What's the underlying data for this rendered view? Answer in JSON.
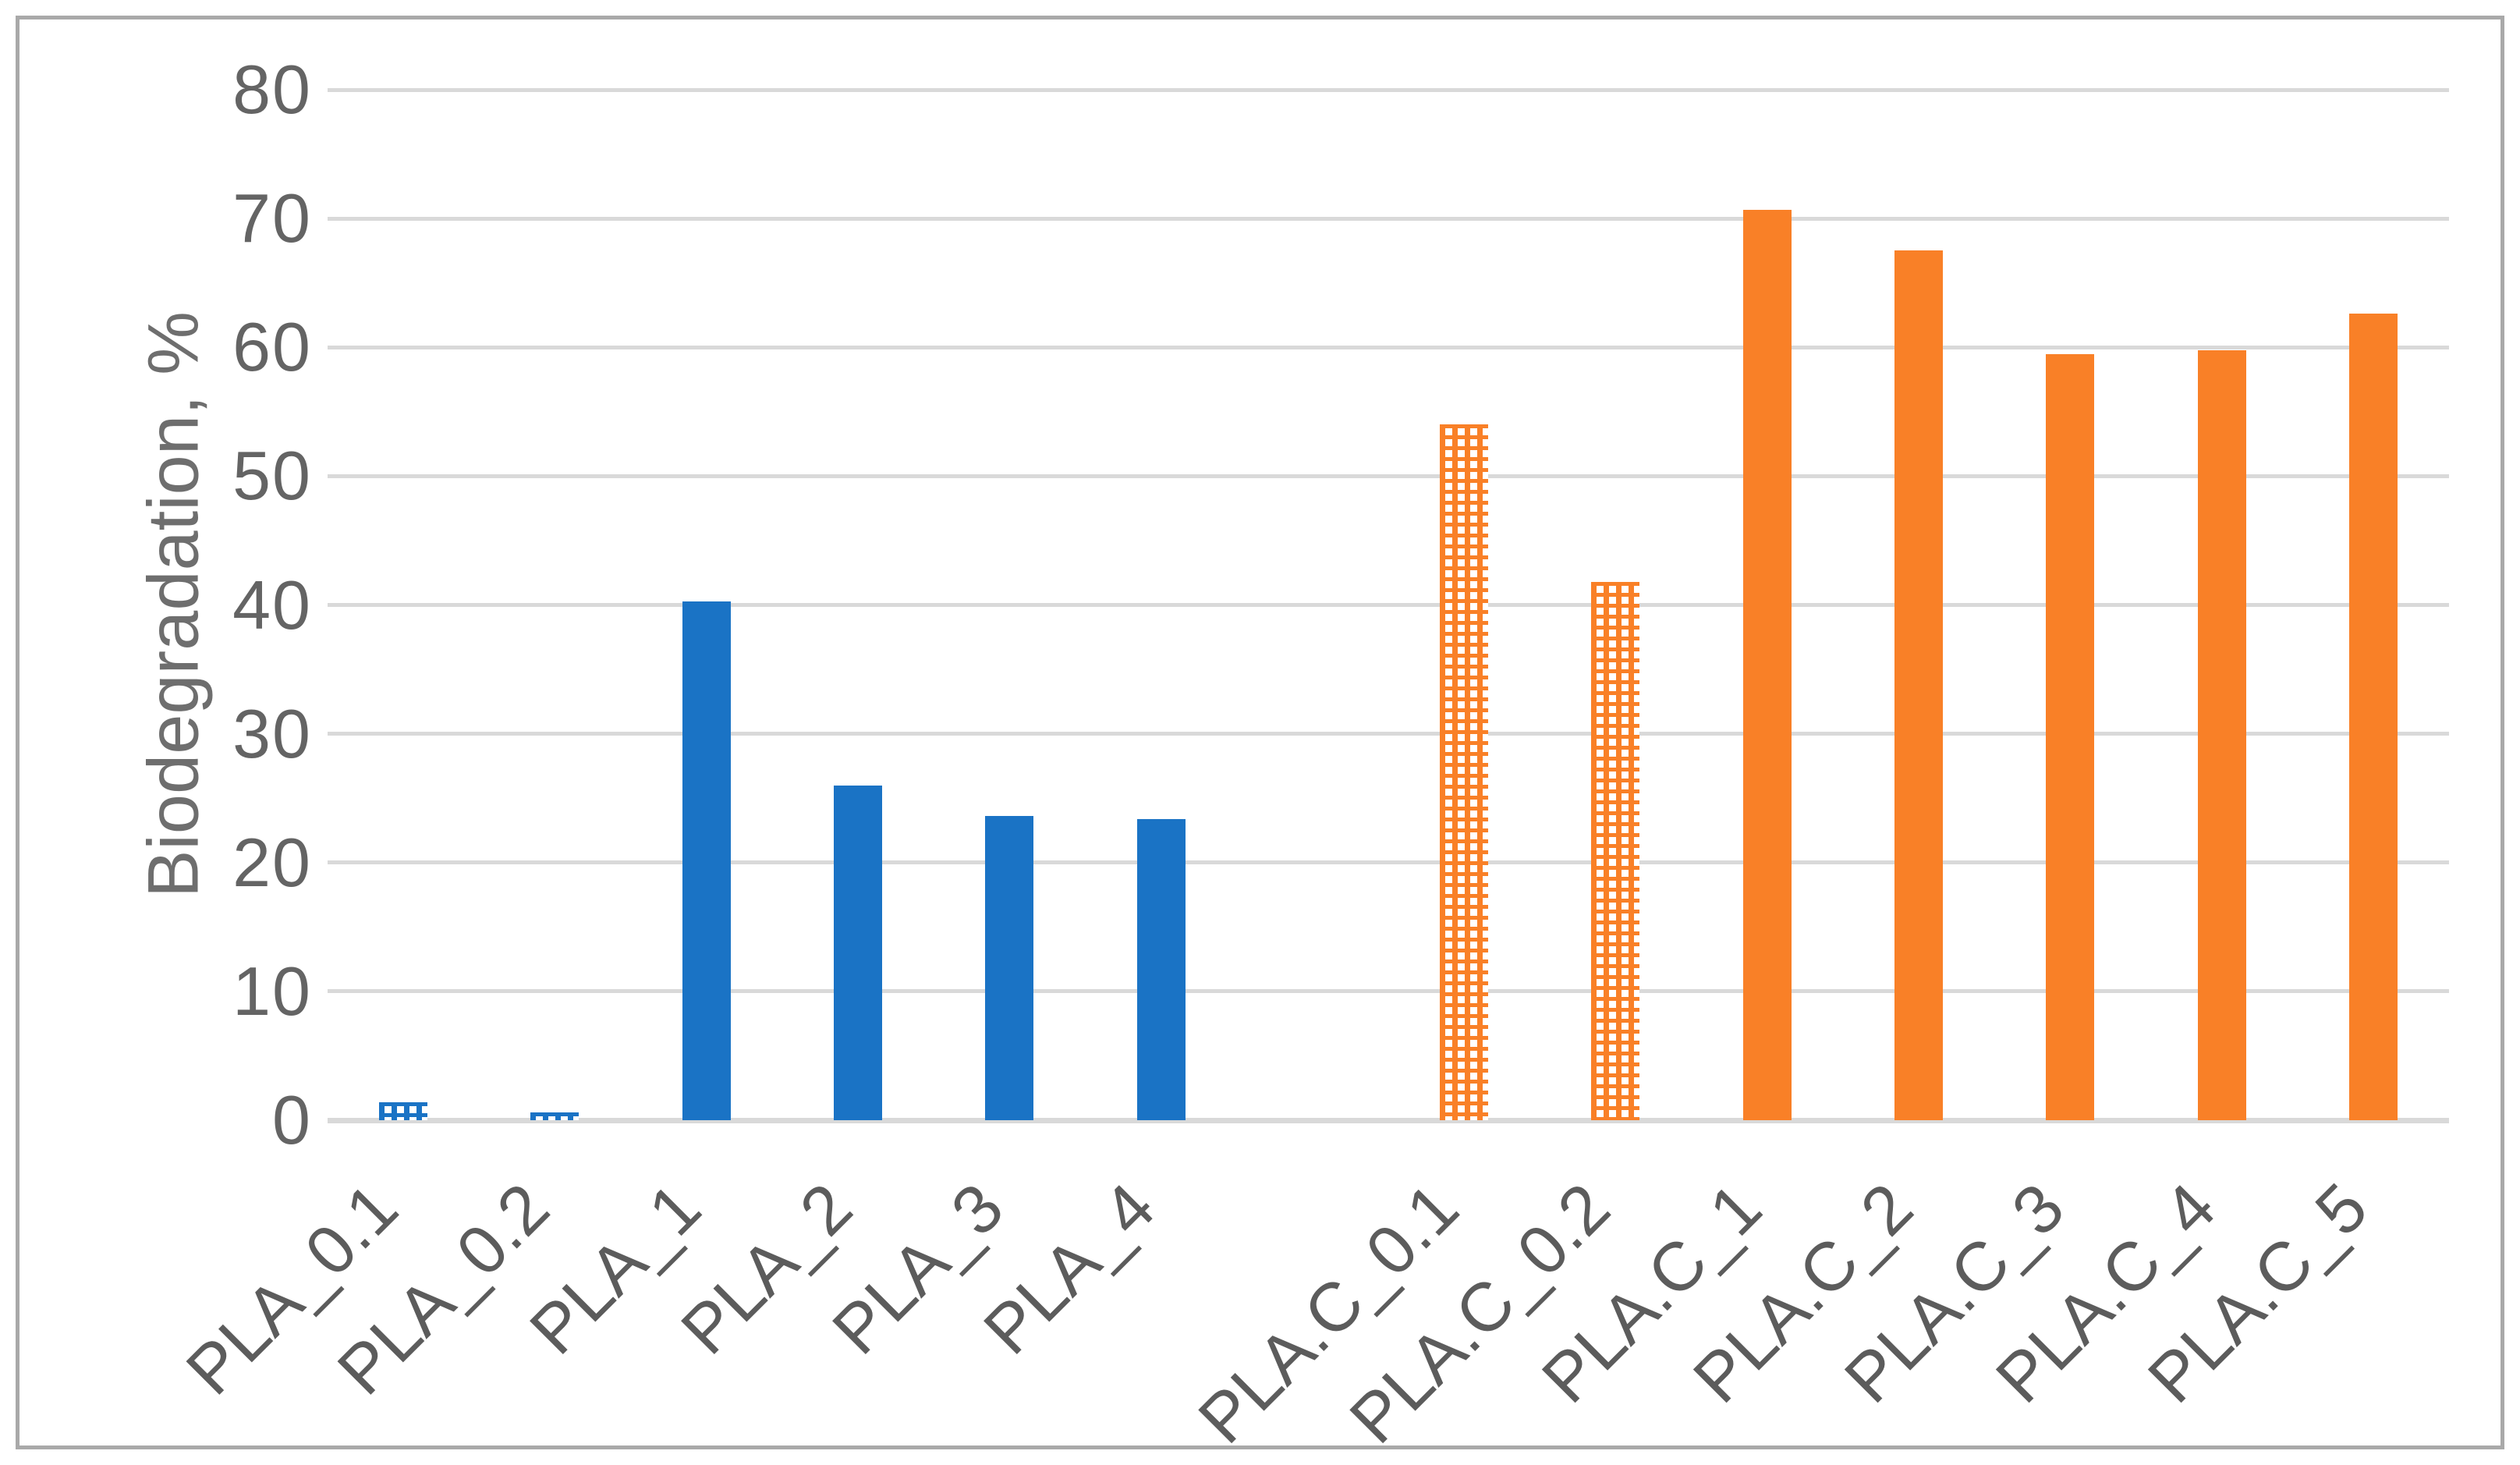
{
  "chart_data": {
    "type": "bar",
    "title": "",
    "xlabel": "",
    "ylabel": "Biodegradation, %",
    "ylim": [
      0,
      80
    ],
    "yticks": [
      0,
      10,
      20,
      30,
      40,
      50,
      60,
      70,
      80
    ],
    "grid": "horizontal-gridlines-on",
    "legend_position": "none",
    "categories": [
      "PLA_0.1",
      "PLA_0.2",
      "PLA_1",
      "PLA_2",
      "PLA_3",
      "PLA_4",
      "PLA.C_0.1",
      "PLA.C_0.2",
      "PLA.C_1",
      "PLA.C_2",
      "PLA.C_3",
      "PLA.C_4",
      "PLA.C_5"
    ],
    "series": [
      {
        "name": "Biodegradation, %",
        "values": [
          1.4,
          0.6,
          40.3,
          26.0,
          23.6,
          23.4,
          54.0,
          41.8,
          70.7,
          67.5,
          59.5,
          59.8,
          62.6
        ]
      }
    ],
    "bars": [
      {
        "label": "PLA_0.1",
        "value": 1.4,
        "color_key": "blue",
        "fill": "dotted"
      },
      {
        "label": "PLA_0.2",
        "value": 0.6,
        "color_key": "blue",
        "fill": "dotted"
      },
      {
        "label": "PLA_1",
        "value": 40.3,
        "color_key": "blue",
        "fill": "solid"
      },
      {
        "label": "PLA_2",
        "value": 26.0,
        "color_key": "blue",
        "fill": "solid"
      },
      {
        "label": "PLA_3",
        "value": 23.6,
        "color_key": "blue",
        "fill": "solid"
      },
      {
        "label": "PLA_4",
        "value": 23.4,
        "color_key": "blue",
        "fill": "solid"
      },
      {
        "label": "PLA.C_0.1",
        "value": 54.0,
        "color_key": "orange",
        "fill": "dotted"
      },
      {
        "label": "PLA.C_0.2",
        "value": 41.8,
        "color_key": "orange",
        "fill": "dotted"
      },
      {
        "label": "PLA.C_1",
        "value": 70.7,
        "color_key": "orange",
        "fill": "solid"
      },
      {
        "label": "PLA.C_2",
        "value": 67.5,
        "color_key": "orange",
        "fill": "solid"
      },
      {
        "label": "PLA.C_3",
        "value": 59.5,
        "color_key": "orange",
        "fill": "solid"
      },
      {
        "label": "PLA.C_4",
        "value": 59.8,
        "color_key": "orange",
        "fill": "solid"
      },
      {
        "label": "PLA.C_5",
        "value": 62.6,
        "color_key": "orange",
        "fill": "solid"
      }
    ],
    "group_separator_after_index": 5,
    "colors": {
      "blue": "#1a73c5",
      "orange": "#f98027",
      "gridline": "#d9d9d9",
      "axis_text": "#646464",
      "frame_border": "#a9a9a9",
      "background": "#ffffff"
    }
  }
}
